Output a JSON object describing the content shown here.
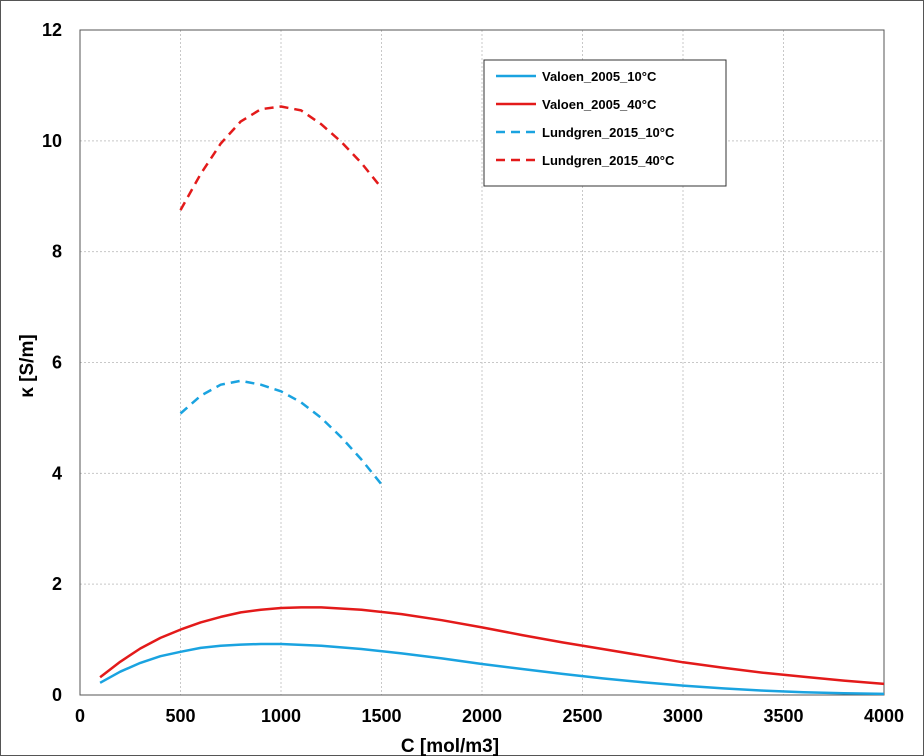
{
  "chart_data": {
    "type": "line",
    "title": "",
    "xlabel": "C [mol/m3]",
    "ylabel": "κ [S/m]",
    "xlim": [
      0,
      4000
    ],
    "ylim": [
      0,
      12
    ],
    "xticks": [
      0,
      500,
      1000,
      1500,
      2000,
      2500,
      3000,
      3500,
      4000
    ],
    "yticks": [
      0,
      2,
      4,
      6,
      8,
      10,
      12
    ],
    "grid": true,
    "legend_position": "top-right",
    "series": [
      {
        "name": "Valoen_2005_10°C",
        "color": "#1aa3e0",
        "dash": "solid",
        "x": [
          100,
          200,
          300,
          400,
          500,
          600,
          700,
          800,
          900,
          1000,
          1200,
          1400,
          1600,
          1800,
          2000,
          2200,
          2400,
          2600,
          2800,
          3000,
          3200,
          3400,
          3600,
          3800,
          4000
        ],
        "y": [
          0.22,
          0.42,
          0.58,
          0.7,
          0.78,
          0.85,
          0.89,
          0.91,
          0.92,
          0.92,
          0.89,
          0.83,
          0.75,
          0.66,
          0.56,
          0.47,
          0.38,
          0.3,
          0.23,
          0.17,
          0.12,
          0.08,
          0.05,
          0.03,
          0.02
        ]
      },
      {
        "name": "Valoen_2005_40°C",
        "color": "#e31a1a",
        "dash": "solid",
        "x": [
          100,
          200,
          300,
          400,
          500,
          600,
          700,
          800,
          900,
          1000,
          1100,
          1200,
          1400,
          1600,
          1800,
          2000,
          2200,
          2400,
          2600,
          2800,
          3000,
          3200,
          3400,
          3600,
          3800,
          4000
        ],
        "y": [
          0.32,
          0.6,
          0.84,
          1.03,
          1.18,
          1.31,
          1.41,
          1.49,
          1.54,
          1.57,
          1.58,
          1.58,
          1.54,
          1.46,
          1.35,
          1.22,
          1.08,
          0.95,
          0.83,
          0.71,
          0.59,
          0.49,
          0.4,
          0.33,
          0.26,
          0.2
        ]
      },
      {
        "name": "Lundgren_2015_10°C",
        "color": "#1aa3e0",
        "dash": "dashed",
        "x": [
          500,
          600,
          700,
          800,
          900,
          1000,
          1100,
          1200,
          1300,
          1400,
          1500
        ],
        "y": [
          5.08,
          5.4,
          5.6,
          5.67,
          5.6,
          5.48,
          5.28,
          5.0,
          4.65,
          4.25,
          3.8
        ]
      },
      {
        "name": "Lundgren_2015_40°C",
        "color": "#e31a1a",
        "dash": "dashed",
        "x": [
          500,
          600,
          700,
          800,
          900,
          1000,
          1100,
          1200,
          1300,
          1400,
          1500
        ],
        "y": [
          8.75,
          9.4,
          9.95,
          10.35,
          10.57,
          10.62,
          10.55,
          10.3,
          9.98,
          9.6,
          9.15
        ]
      }
    ]
  }
}
